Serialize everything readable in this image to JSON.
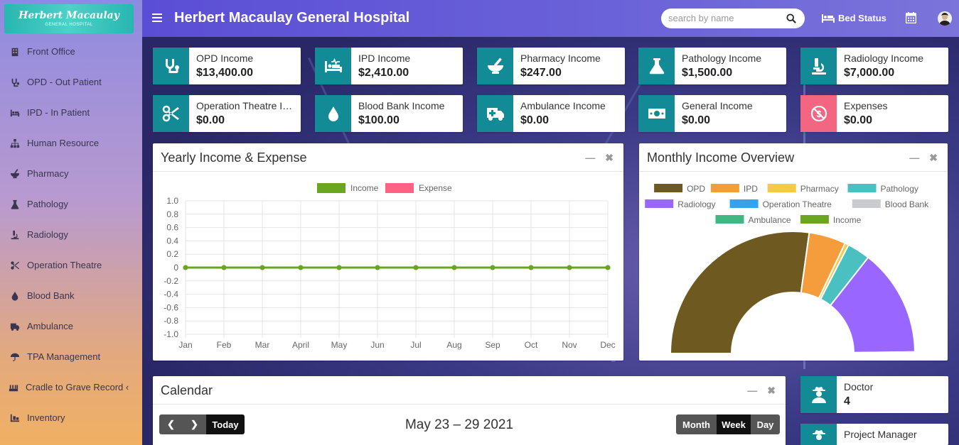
{
  "logo": {
    "name": "Herbert Macaulay",
    "sub": "GENERAL HOSPITAL"
  },
  "header": {
    "title": "Herbert Macaulay General Hospital",
    "search_placeholder": "search by name",
    "bed_status": "Bed Status"
  },
  "sidebar": {
    "items": [
      {
        "label": "Front Office",
        "icon": "building-icon"
      },
      {
        "label": "OPD - Out Patient",
        "icon": "stethoscope-icon"
      },
      {
        "label": "IPD - In Patient",
        "icon": "bed-icon"
      },
      {
        "label": "Human Resource",
        "icon": "sitemap-icon"
      },
      {
        "label": "Pharmacy",
        "icon": "mortar-pestle-icon"
      },
      {
        "label": "Pathology",
        "icon": "flask-icon"
      },
      {
        "label": "Radiology",
        "icon": "microscope-icon"
      },
      {
        "label": "Operation Theatre",
        "icon": "scissors-icon"
      },
      {
        "label": "Blood Bank",
        "icon": "tint-icon"
      },
      {
        "label": "Ambulance",
        "icon": "ambulance-icon"
      },
      {
        "label": "TPA Management",
        "icon": "umbrella-icon"
      },
      {
        "label": "Cradle to Grave Record ‹",
        "icon": "record-icon"
      },
      {
        "label": "Inventory",
        "icon": "inventory-icon"
      }
    ]
  },
  "income_boxes": [
    {
      "label": "OPD Income",
      "value": "$13,400.00",
      "color": "#138b96"
    },
    {
      "label": "IPD Income",
      "value": "$2,410.00",
      "color": "#138b96"
    },
    {
      "label": "Pharmacy Income",
      "value": "$247.00",
      "color": "#138b96"
    },
    {
      "label": "Pathology Income",
      "value": "$1,500.00",
      "color": "#138b96"
    },
    {
      "label": "Radiology Income",
      "value": "$7,000.00",
      "color": "#138b96"
    },
    {
      "label": "Operation Theatre Income",
      "value": "$0.00",
      "color": "#138b96"
    },
    {
      "label": "Blood Bank Income",
      "value": "$100.00",
      "color": "#138b96"
    },
    {
      "label": "Ambulance Income",
      "value": "$0.00",
      "color": "#138b96"
    },
    {
      "label": "General Income",
      "value": "$0.00",
      "color": "#138b96"
    },
    {
      "label": "Expenses",
      "value": "$0.00",
      "color": "#f26682"
    }
  ],
  "yearly_panel": {
    "title": "Yearly Income & Expense"
  },
  "monthly_panel": {
    "title": "Monthly Income Overview"
  },
  "calendar_panel": {
    "title": "Calendar",
    "range": "May 23 – 29 2021",
    "today": "Today",
    "views": [
      "Month",
      "Week",
      "Day"
    ],
    "active_view": "Week"
  },
  "staff_boxes": [
    {
      "label": "Doctor",
      "value": "4"
    },
    {
      "label": "Project Manager",
      "value": ""
    }
  ],
  "chart_data": [
    {
      "type": "line",
      "categories": [
        "Jan",
        "Feb",
        "Mar",
        "April",
        "May",
        "Jun",
        "Jul",
        "Aug",
        "Sep",
        "Oct",
        "Nov",
        "Dec"
      ],
      "series": [
        {
          "name": "Income",
          "values": [
            0,
            0,
            0,
            0,
            0,
            0,
            0,
            0,
            0,
            0,
            0,
            0
          ],
          "color": "#6aa61f"
        },
        {
          "name": "Expense",
          "values": [
            0,
            0,
            0,
            0,
            0,
            0,
            0,
            0,
            0,
            0,
            0,
            0
          ],
          "color": "#ff6384"
        }
      ],
      "ylim": [
        -1.0,
        1.0
      ],
      "yticks": [
        "1.0",
        "0.8",
        "0.6",
        "0.4",
        "0.2",
        "0",
        "-0.2",
        "-0.4",
        "-0.6",
        "-0.8",
        "-1.0"
      ],
      "grid": true,
      "legend": "top-center"
    },
    {
      "type": "pie",
      "style": "half-doughnut",
      "legend": "top",
      "slices": [
        {
          "name": "OPD",
          "value": 13400,
          "color": "#6e5a21"
        },
        {
          "name": "IPD",
          "value": 2410,
          "color": "#f59d3d"
        },
        {
          "name": "Pharmacy",
          "value": 247,
          "color": "#f7c948"
        },
        {
          "name": "Pathology",
          "value": 1500,
          "color": "#4bc0c0"
        },
        {
          "name": "Radiology",
          "value": 7000,
          "color": "#9966ff"
        },
        {
          "name": "Operation Theatre",
          "value": 0,
          "color": "#36a2eb"
        },
        {
          "name": "Blood Bank",
          "value": 100,
          "color": "#c9cbcf"
        },
        {
          "name": "Ambulance",
          "value": 0,
          "color": "#41b883"
        },
        {
          "name": "Income",
          "value": 0,
          "color": "#6aa61f"
        }
      ]
    }
  ]
}
